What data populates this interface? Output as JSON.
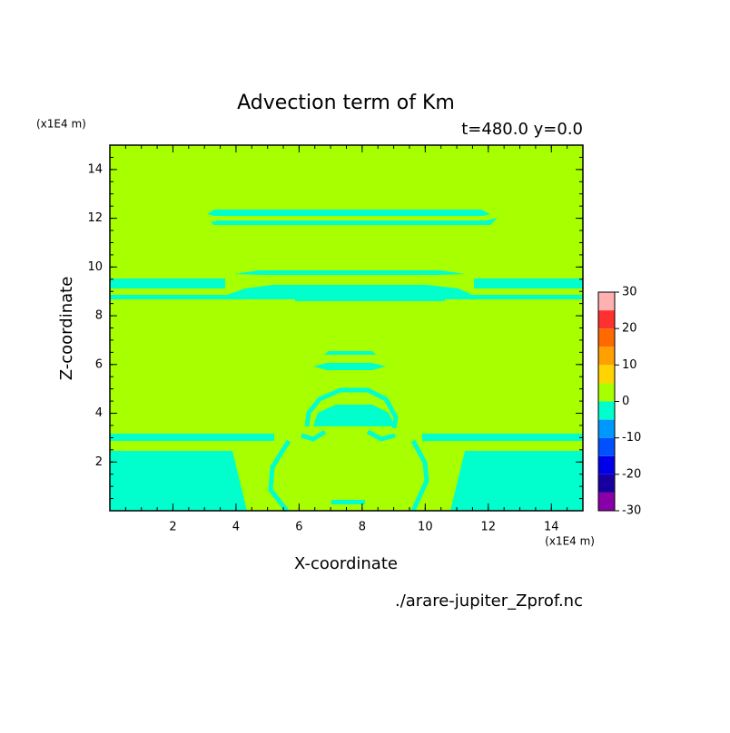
{
  "chart_data": {
    "type": "contour",
    "title": "Advection term of Km",
    "subtitle": "t=480.0 y=0.0",
    "x_label": "X-coordinate",
    "y_label": "Z-coordinate",
    "x_unit": "(x1E4 m)",
    "y_unit": "(x1E4 m)",
    "source": "./arare-jupiter_Zprof.nc",
    "xlim": [
      0,
      15
    ],
    "ylim": [
      0,
      15
    ],
    "xticks": [
      2,
      4,
      6,
      8,
      10,
      12,
      14
    ],
    "yticks": [
      2,
      4,
      6,
      8,
      10,
      12,
      14
    ],
    "colorbar": {
      "levels": [
        -30,
        -25,
        -20,
        -15,
        -10,
        -5,
        0,
        5,
        10,
        15,
        20,
        25,
        30
      ],
      "colors": [
        "#8a00a8",
        "#1800a0",
        "#0000e8",
        "#0050ff",
        "#0098ff",
        "#00ffcc",
        "#a8ff00",
        "#ffd400",
        "#ffa000",
        "#ff6a00",
        "#ff3030",
        "#ffb0b0"
      ],
      "ticks": [
        -30,
        -20,
        -10,
        0,
        10,
        20,
        30
      ]
    }
  }
}
